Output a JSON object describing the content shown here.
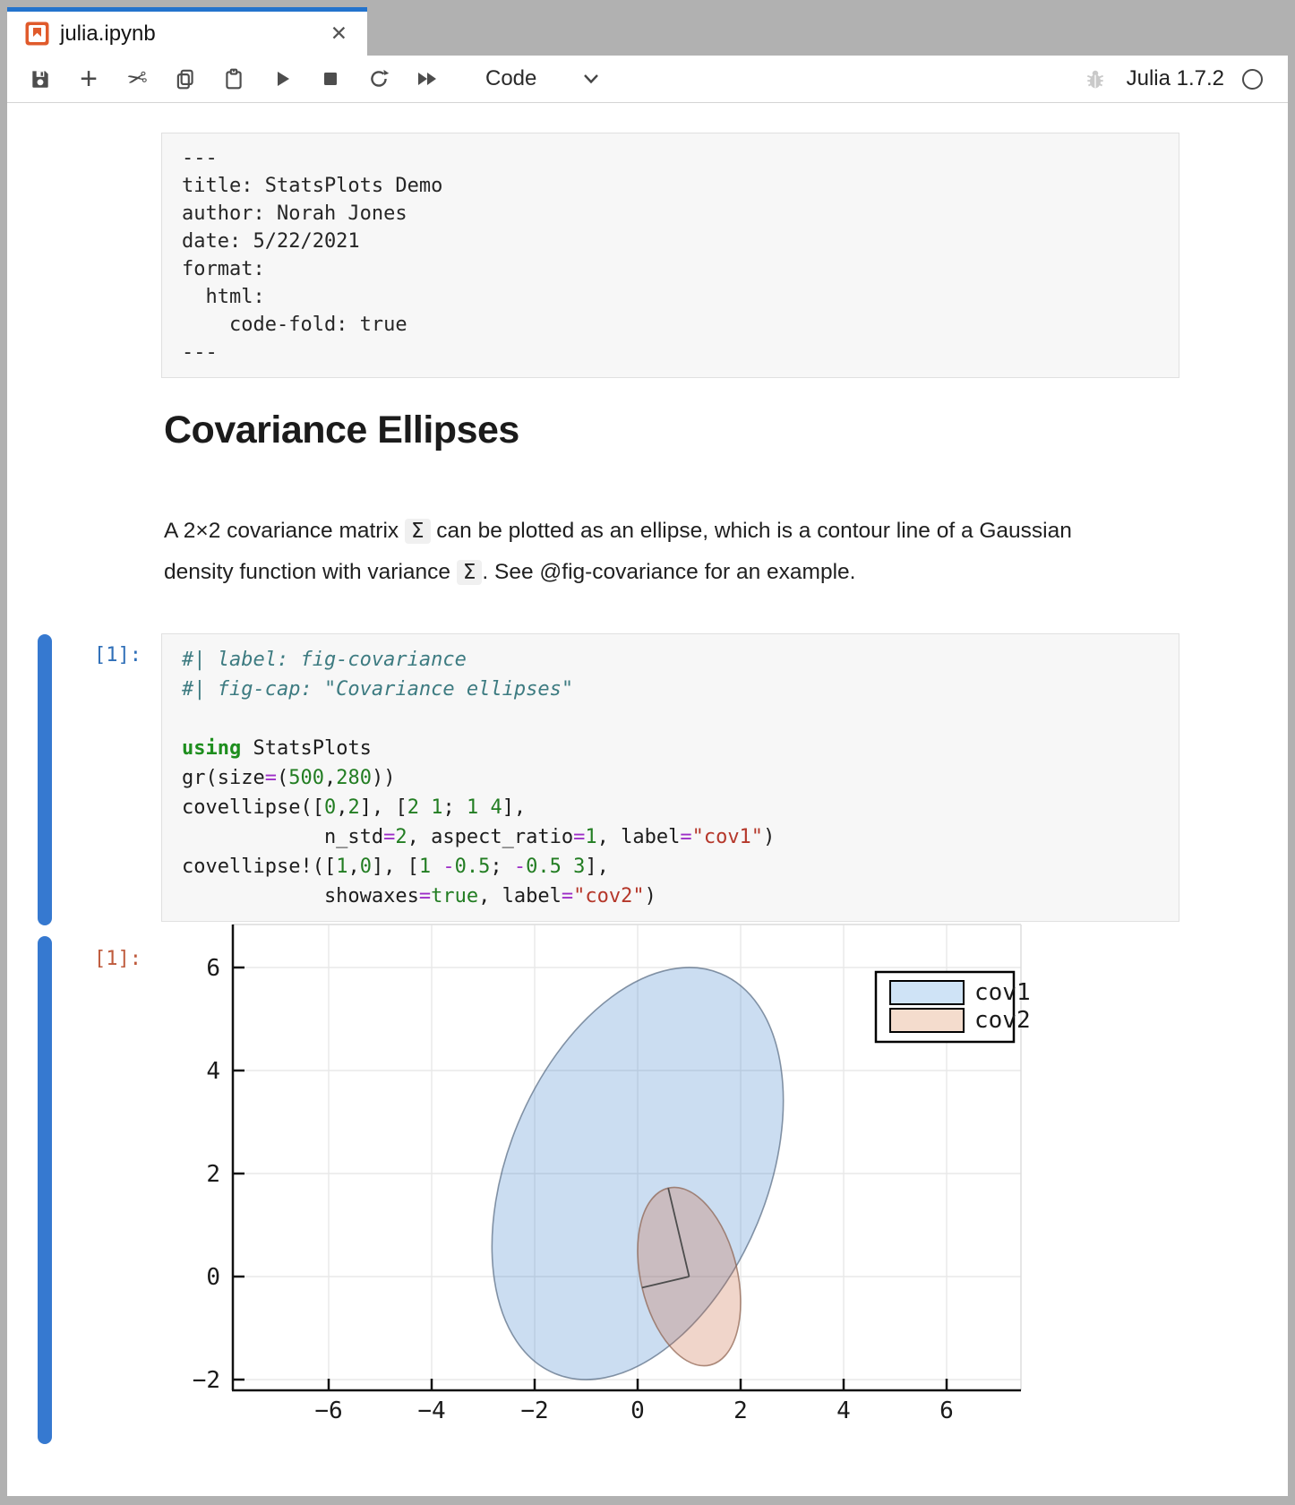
{
  "window": {
    "tab": {
      "title": "julia.ipynb",
      "close_label": "✕",
      "icon": "notebook-icon"
    },
    "toolbar": {
      "icons": [
        {
          "name": "save-icon"
        },
        {
          "name": "add-cell-icon"
        },
        {
          "name": "cut-cell-icon"
        },
        {
          "name": "copy-cell-icon"
        },
        {
          "name": "paste-cell-icon"
        },
        {
          "name": "run-cell-icon"
        },
        {
          "name": "interrupt-kernel-icon"
        },
        {
          "name": "restart-kernel-icon"
        },
        {
          "name": "run-all-cells-icon"
        },
        {
          "name": "chevron-down-icon"
        },
        {
          "name": "bug-icon"
        },
        {
          "name": "kernel-status-icon"
        }
      ],
      "cell_type_label": "Code",
      "kernel_name": "Julia 1.7.2"
    }
  },
  "notebook": {
    "yaml_cell": {
      "text": "---\ntitle: StatsPlots Demo\nauthor: Norah Jones\ndate: 5/22/2021\nformat:\n  html:\n    code-fold: true\n---"
    },
    "heading": "Covariance Ellipses",
    "paragraph": {
      "segments": [
        {
          "t": "A 2×2 covariance matrix "
        },
        {
          "t": "Σ",
          "code": true
        },
        {
          "t": " can be plotted as an ellipse, which is a contour line of a Gaussian density function with variance "
        },
        {
          "t": "Σ",
          "code": true
        },
        {
          "t": ". See @fig-covariance for an example."
        }
      ]
    },
    "code_cell": {
      "execution_label": "[1]:",
      "lines": [
        [
          [
            "cm",
            "#| label: fig-covariance"
          ]
        ],
        [
          [
            "cm",
            "#| fig-cap: \"Covariance ellipses\""
          ]
        ],
        [],
        [
          [
            "kw",
            "using"
          ],
          [
            "pl",
            " StatsPlots"
          ]
        ],
        [
          [
            "pl",
            "gr(size"
          ],
          [
            "op",
            "="
          ],
          [
            "pl",
            "("
          ],
          [
            "num",
            "500"
          ],
          [
            "pl",
            ","
          ],
          [
            "num",
            "280"
          ],
          [
            "pl",
            "))"
          ]
        ],
        [
          [
            "pl",
            "covellipse(["
          ],
          [
            "num",
            "0"
          ],
          [
            "pl",
            ","
          ],
          [
            "num",
            "2"
          ],
          [
            "pl",
            "], ["
          ],
          [
            "num",
            "2"
          ],
          [
            "pl",
            " "
          ],
          [
            "num",
            "1"
          ],
          [
            "pl",
            "; "
          ],
          [
            "num",
            "1"
          ],
          [
            "pl",
            " "
          ],
          [
            "num",
            "4"
          ],
          [
            "pl",
            "],"
          ]
        ],
        [
          [
            "pl",
            "            n_std"
          ],
          [
            "op",
            "="
          ],
          [
            "num",
            "2"
          ],
          [
            "pl",
            ", aspect_ratio"
          ],
          [
            "op",
            "="
          ],
          [
            "num",
            "1"
          ],
          [
            "pl",
            ", label"
          ],
          [
            "op",
            "="
          ],
          [
            "str",
            "\"cov1\""
          ],
          [
            "pl",
            ")"
          ]
        ],
        [
          [
            "pl",
            "covellipse!(["
          ],
          [
            "num",
            "1"
          ],
          [
            "pl",
            ","
          ],
          [
            "num",
            "0"
          ],
          [
            "pl",
            "], ["
          ],
          [
            "num",
            "1"
          ],
          [
            "pl",
            " "
          ],
          [
            "op",
            "-"
          ],
          [
            "num",
            "0.5"
          ],
          [
            "pl",
            "; "
          ],
          [
            "op",
            "-"
          ],
          [
            "num",
            "0.5"
          ],
          [
            "pl",
            " "
          ],
          [
            "num",
            "3"
          ],
          [
            "pl",
            "],"
          ]
        ],
        [
          [
            "pl",
            "            showaxes"
          ],
          [
            "op",
            "="
          ],
          [
            "num",
            "true"
          ],
          [
            "pl",
            ", label"
          ],
          [
            "op",
            "="
          ],
          [
            "str",
            "\"cov2\""
          ],
          [
            "pl",
            ")"
          ]
        ]
      ]
    },
    "output_cell": {
      "execution_label": "[1]:"
    }
  },
  "chart_data": {
    "type": "scatter",
    "subtype": "covariance-ellipses",
    "title": "",
    "xlabel": "",
    "ylabel": "",
    "x_ticks": [
      -6,
      -4,
      -2,
      0,
      2,
      4,
      6
    ],
    "y_ticks": [
      6,
      4,
      2,
      0,
      -2
    ],
    "x_range": [
      -7.9,
      7.4
    ],
    "y_range": [
      -2.2,
      6.8
    ],
    "grid": true,
    "legend": {
      "position": "top-right",
      "entries": [
        "cov1",
        "cov2"
      ]
    },
    "series": [
      {
        "name": "cov1",
        "center": [
          0,
          2
        ],
        "cov": [
          [
            2,
            1
          ],
          [
            1,
            4
          ]
        ],
        "n_std": 2,
        "semi_axes": [
          4.2018,
          2.5186
        ],
        "angle_deg": 67.5,
        "show_axes": false,
        "fill": "rgba(49,120,200,0.25)",
        "stroke": "rgba(75,95,120,0.65)",
        "legend_swatch": "#cfe3f6"
      },
      {
        "name": "cov2",
        "center": [
          1,
          0
        ],
        "cov": [
          [
            1,
            -0.5
          ],
          [
            -0.5,
            3
          ]
        ],
        "n_std": 1,
        "semi_axes": [
          1.7659,
          0.9392
        ],
        "angle_deg": -76.72,
        "show_axes": true,
        "axes_endpoints": [
          [
            0.594,
            1.719
          ],
          [
            0.086,
            -0.216
          ]
        ],
        "fill": "rgba(200,100,60,0.27)",
        "stroke": "rgba(140,95,75,0.7)",
        "legend_swatch": "#f4dccd"
      }
    ]
  }
}
